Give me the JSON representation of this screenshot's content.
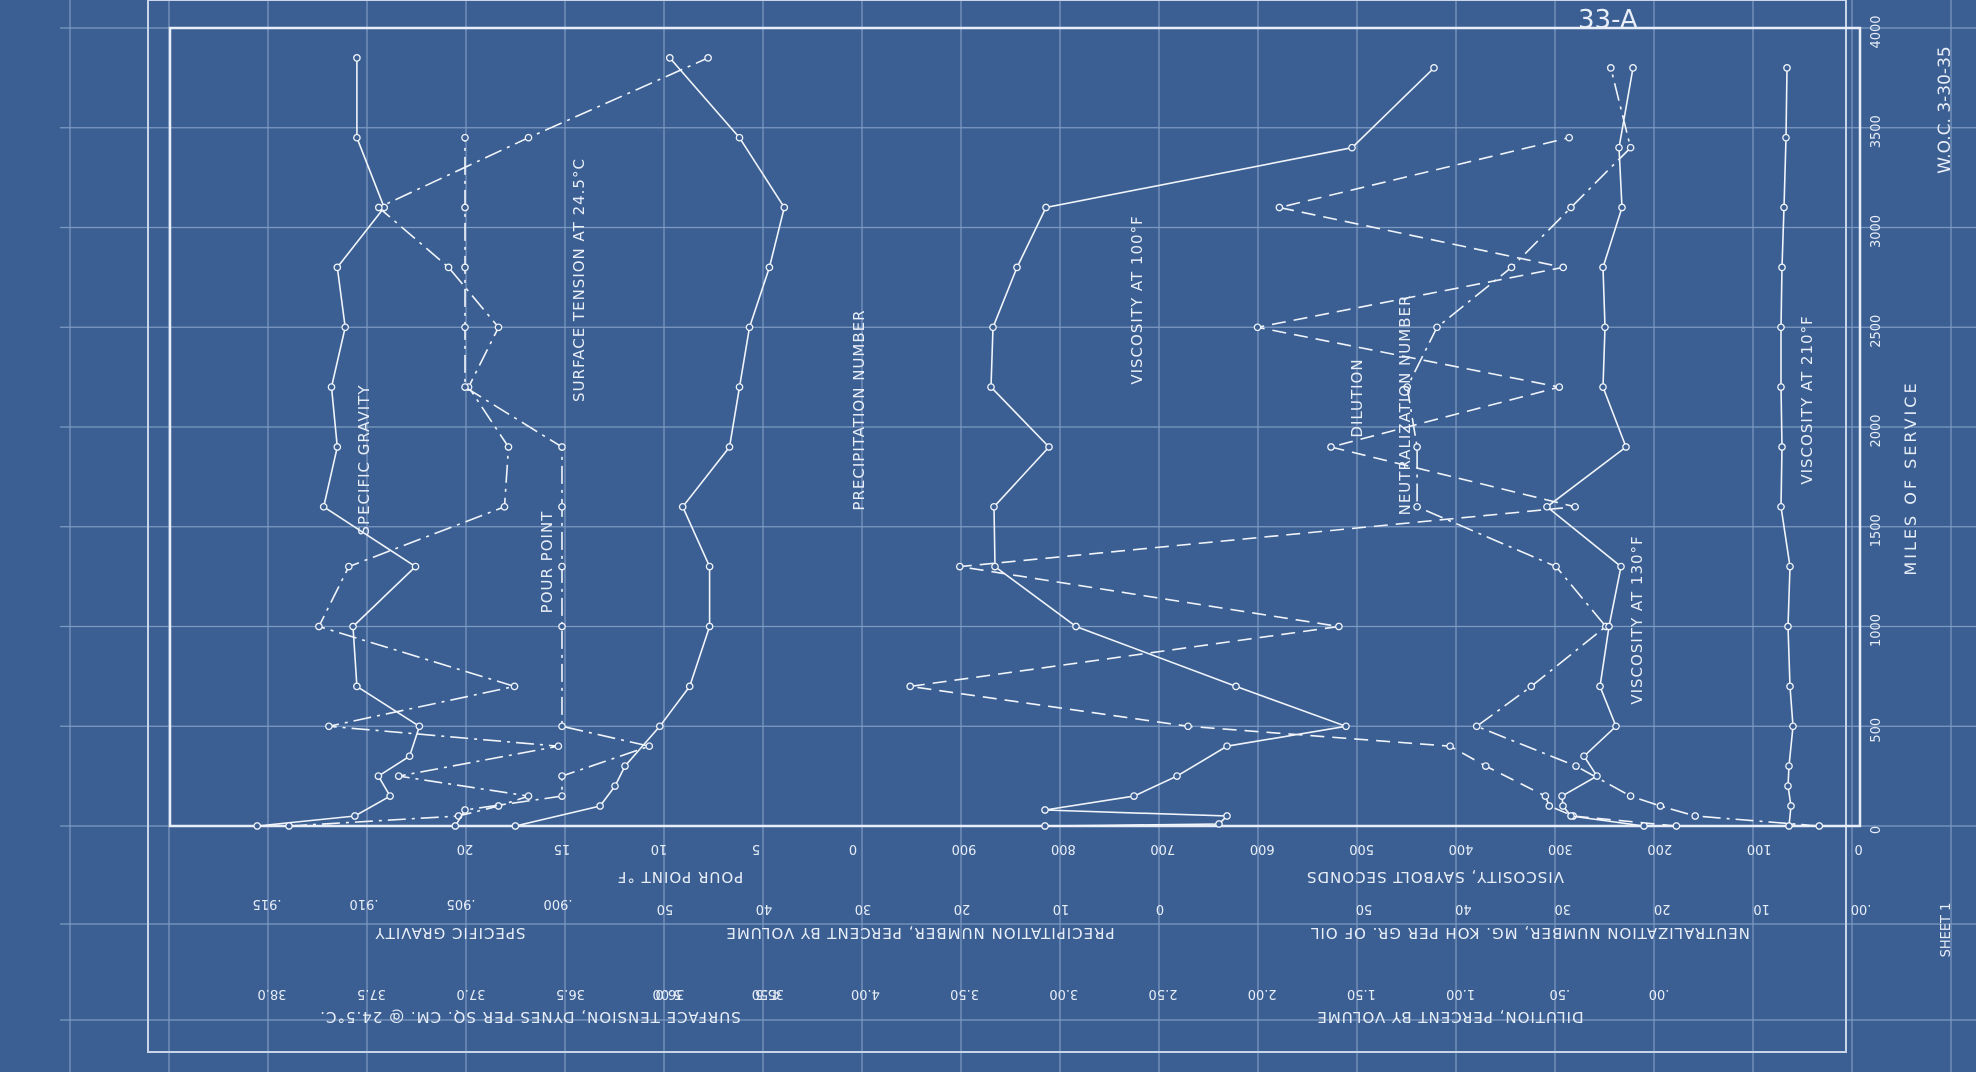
{
  "sheet": {
    "number": "33-A",
    "signature": "W.O.C. 3-30-35",
    "sheet_label": "SHEET 1"
  },
  "chart_data": {
    "type": "line",
    "title": "",
    "orientation": "rotated-90",
    "miles_axis": {
      "label": "MILES OF SERVICE",
      "range": [
        0,
        4000
      ],
      "ticks": [
        "0",
        "500",
        "1000",
        "1500",
        "2000",
        "2500",
        "3000",
        "3500",
        "4000"
      ]
    },
    "value_scales": [
      {
        "id": "surface_tension",
        "label": "SURFACE TENSION, DYNES PER SQ. CM. @ 24.5°C.",
        "ticks": [
          "38.0",
          "37.5",
          "37.0",
          "36.5",
          "36.0",
          "35.5"
        ]
      },
      {
        "id": "specific_gravity",
        "label": "SPECIFIC GRAVITY",
        "ticks": [
          ".915",
          ".910",
          ".905",
          ".900"
        ]
      },
      {
        "id": "pour_point",
        "label": "POUR POINT °F",
        "ticks": [
          "20",
          "15",
          "10",
          "5",
          "0"
        ]
      },
      {
        "id": "pour_point_2",
        "label": "",
        "ticks": [
          "50",
          "40",
          "30",
          "20",
          "10",
          "0"
        ]
      },
      {
        "id": "precipitation",
        "label": "PRECIPITATION NUMBER, PERCENT BY VOLUME",
        "ticks": [
          "5.00",
          "4.50",
          "4.00",
          "3.50",
          "3.00",
          "2.50",
          "2.00",
          "1.50",
          "1.00",
          ".50",
          ".00"
        ]
      },
      {
        "id": "viscosity",
        "label": "VISCOSITY, SAYBOLT SECONDS",
        "ticks": [
          "900",
          "800",
          "700",
          "600",
          "500",
          "400",
          "300",
          "200",
          "100",
          "0"
        ]
      },
      {
        "id": "neutralization",
        "label": "NEUTRALIZATION NUMBER, MG. KOH PER GR. OF OIL",
        "ticks": [
          "50",
          "40",
          "30",
          "20",
          "10",
          ".00"
        ]
      },
      {
        "id": "dilution",
        "label": "DILUTION, PERCENT BY VOLUME",
        "ticks": []
      }
    ],
    "series": [
      {
        "name": "SPECIFIC GRAVITY",
        "style": "solid",
        "points": [
          [
            0,
            0.9155
          ],
          [
            50,
            0.9105
          ],
          [
            150,
            0.9087
          ],
          [
            250,
            0.9093
          ],
          [
            350,
            0.9077
          ],
          [
            500,
            0.9072
          ],
          [
            700,
            0.9104
          ],
          [
            1000,
            0.9106
          ],
          [
            1300,
            0.9074
          ],
          [
            1600,
            0.9121
          ],
          [
            1900,
            0.9114
          ],
          [
            2200,
            0.9117
          ],
          [
            2500,
            0.911
          ],
          [
            2800,
            0.9114
          ],
          [
            3100,
            0.909
          ],
          [
            3450,
            0.9104
          ],
          [
            3850,
            0.9104
          ]
        ]
      },
      {
        "name": "SURFACE TENSION AT 24.5°C",
        "style": "dash-dot",
        "points": [
          [
            0,
            37.9
          ],
          [
            50,
            37.05
          ],
          [
            100,
            36.85
          ],
          [
            150,
            36.7
          ],
          [
            250,
            37.35
          ],
          [
            400,
            36.55
          ],
          [
            500,
            37.7
          ],
          [
            700,
            36.77
          ],
          [
            1000,
            37.75
          ],
          [
            1300,
            37.6
          ],
          [
            1600,
            36.82
          ],
          [
            1900,
            36.8
          ],
          [
            2200,
            37.0
          ],
          [
            2500,
            36.85
          ],
          [
            2800,
            37.1
          ],
          [
            3100,
            37.45
          ],
          [
            3450,
            36.7
          ],
          [
            3850,
            35.8
          ]
        ]
      },
      {
        "name": "POUR POINT",
        "style": "dash-dot",
        "points": [
          [
            0,
            20.5
          ],
          [
            80,
            20.0
          ],
          [
            150,
            15.0
          ],
          [
            250,
            15.0
          ],
          [
            400,
            10.5
          ],
          [
            500,
            15.0
          ],
          [
            1000,
            15.0
          ],
          [
            1300,
            15.0
          ],
          [
            1600,
            15.0
          ],
          [
            1900,
            15.0
          ],
          [
            2200,
            20.0
          ],
          [
            2500,
            20.0
          ],
          [
            2800,
            20.0
          ],
          [
            3100,
            20.0
          ],
          [
            3450,
            20.0
          ]
        ]
      },
      {
        "name": "PRECIPITATION NUMBER",
        "style": "solid",
        "points": [
          [
            0,
            35.0
          ],
          [
            100,
            26.5
          ],
          [
            200,
            25.0
          ],
          [
            300,
            24.0
          ],
          [
            500,
            20.5
          ],
          [
            700,
            17.5
          ],
          [
            1000,
            15.5
          ],
          [
            1300,
            15.5
          ],
          [
            1600,
            18.2
          ],
          [
            1900,
            13.5
          ],
          [
            2200,
            12.5
          ],
          [
            2500,
            11.5
          ],
          [
            2800,
            9.5
          ],
          [
            3100,
            8.0
          ],
          [
            3450,
            12.5
          ],
          [
            3850,
            19.5
          ]
        ]
      },
      {
        "name": "VISCOSITY AT 100°F",
        "style": "solid",
        "points": [
          [
            0,
            814
          ],
          [
            10,
            640
          ],
          [
            50,
            632
          ],
          [
            80,
            814
          ],
          [
            150,
            725
          ],
          [
            250,
            682
          ],
          [
            400,
            632
          ],
          [
            500,
            513
          ],
          [
            700,
            623
          ],
          [
            1000,
            783
          ],
          [
            1300,
            864
          ],
          [
            1600,
            865
          ],
          [
            1900,
            810
          ],
          [
            2200,
            868
          ],
          [
            2500,
            866
          ],
          [
            2800,
            842
          ],
          [
            3100,
            813
          ],
          [
            3400,
            507
          ],
          [
            3800,
            425
          ]
        ]
      },
      {
        "name": "DILUTION",
        "style": "dashed",
        "points": [
          [
            0,
            0.92
          ],
          [
            50,
            1.44
          ],
          [
            100,
            1.56
          ],
          [
            150,
            1.58
          ],
          [
            300,
            1.88
          ],
          [
            400,
            2.06
          ],
          [
            500,
            3.38
          ],
          [
            700,
            4.78
          ],
          [
            1000,
            2.62
          ],
          [
            1300,
            4.53
          ],
          [
            1600,
            1.43
          ],
          [
            1900,
            2.66
          ],
          [
            2200,
            1.51
          ],
          [
            2500,
            3.03
          ],
          [
            2800,
            1.49
          ],
          [
            3100,
            2.92
          ],
          [
            3450,
            1.46
          ]
        ]
      },
      {
        "name": "NEUTRALIZATION NUMBER",
        "style": "dash-dot",
        "points": [
          [
            0,
            4.0
          ],
          [
            50,
            16.5
          ],
          [
            100,
            20.0
          ],
          [
            150,
            23.0
          ],
          [
            300,
            28.5
          ],
          [
            500,
            38.5
          ],
          [
            700,
            33.0
          ],
          [
            1000,
            25.5
          ],
          [
            1300,
            30.5
          ],
          [
            1600,
            44.5
          ],
          [
            1900,
            44.5
          ],
          [
            2200,
            45.5
          ],
          [
            2500,
            42.5
          ],
          [
            2800,
            35.0
          ],
          [
            3100,
            29.0
          ],
          [
            3400,
            23.0
          ],
          [
            3800,
            25.0
          ]
        ]
      },
      {
        "name": "VISCOSITY AT 130°F",
        "style": "solid",
        "points": [
          [
            0,
            215
          ],
          [
            50,
            288
          ],
          [
            100,
            296
          ],
          [
            150,
            297
          ],
          [
            250,
            262
          ],
          [
            350,
            275
          ],
          [
            500,
            243
          ],
          [
            700,
            259
          ],
          [
            1000,
            250
          ],
          [
            1300,
            238
          ],
          [
            1600,
            312
          ],
          [
            1900,
            233
          ],
          [
            2200,
            256
          ],
          [
            2500,
            254
          ],
          [
            2800,
            256
          ],
          [
            3100,
            237
          ],
          [
            3400,
            240
          ],
          [
            3800,
            226
          ]
        ]
      },
      {
        "name": "VISCOSITY AT 210°F",
        "style": "solid",
        "points": [
          [
            0,
            70
          ],
          [
            100,
            68
          ],
          [
            200,
            71
          ],
          [
            300,
            70
          ],
          [
            500,
            66
          ],
          [
            700,
            69
          ],
          [
            1000,
            71
          ],
          [
            1300,
            69
          ],
          [
            1600,
            78
          ],
          [
            1900,
            77
          ],
          [
            2200,
            78
          ],
          [
            2500,
            78
          ],
          [
            2800,
            77
          ],
          [
            3100,
            75
          ],
          [
            3450,
            73
          ],
          [
            3800,
            72
          ]
        ]
      }
    ]
  }
}
